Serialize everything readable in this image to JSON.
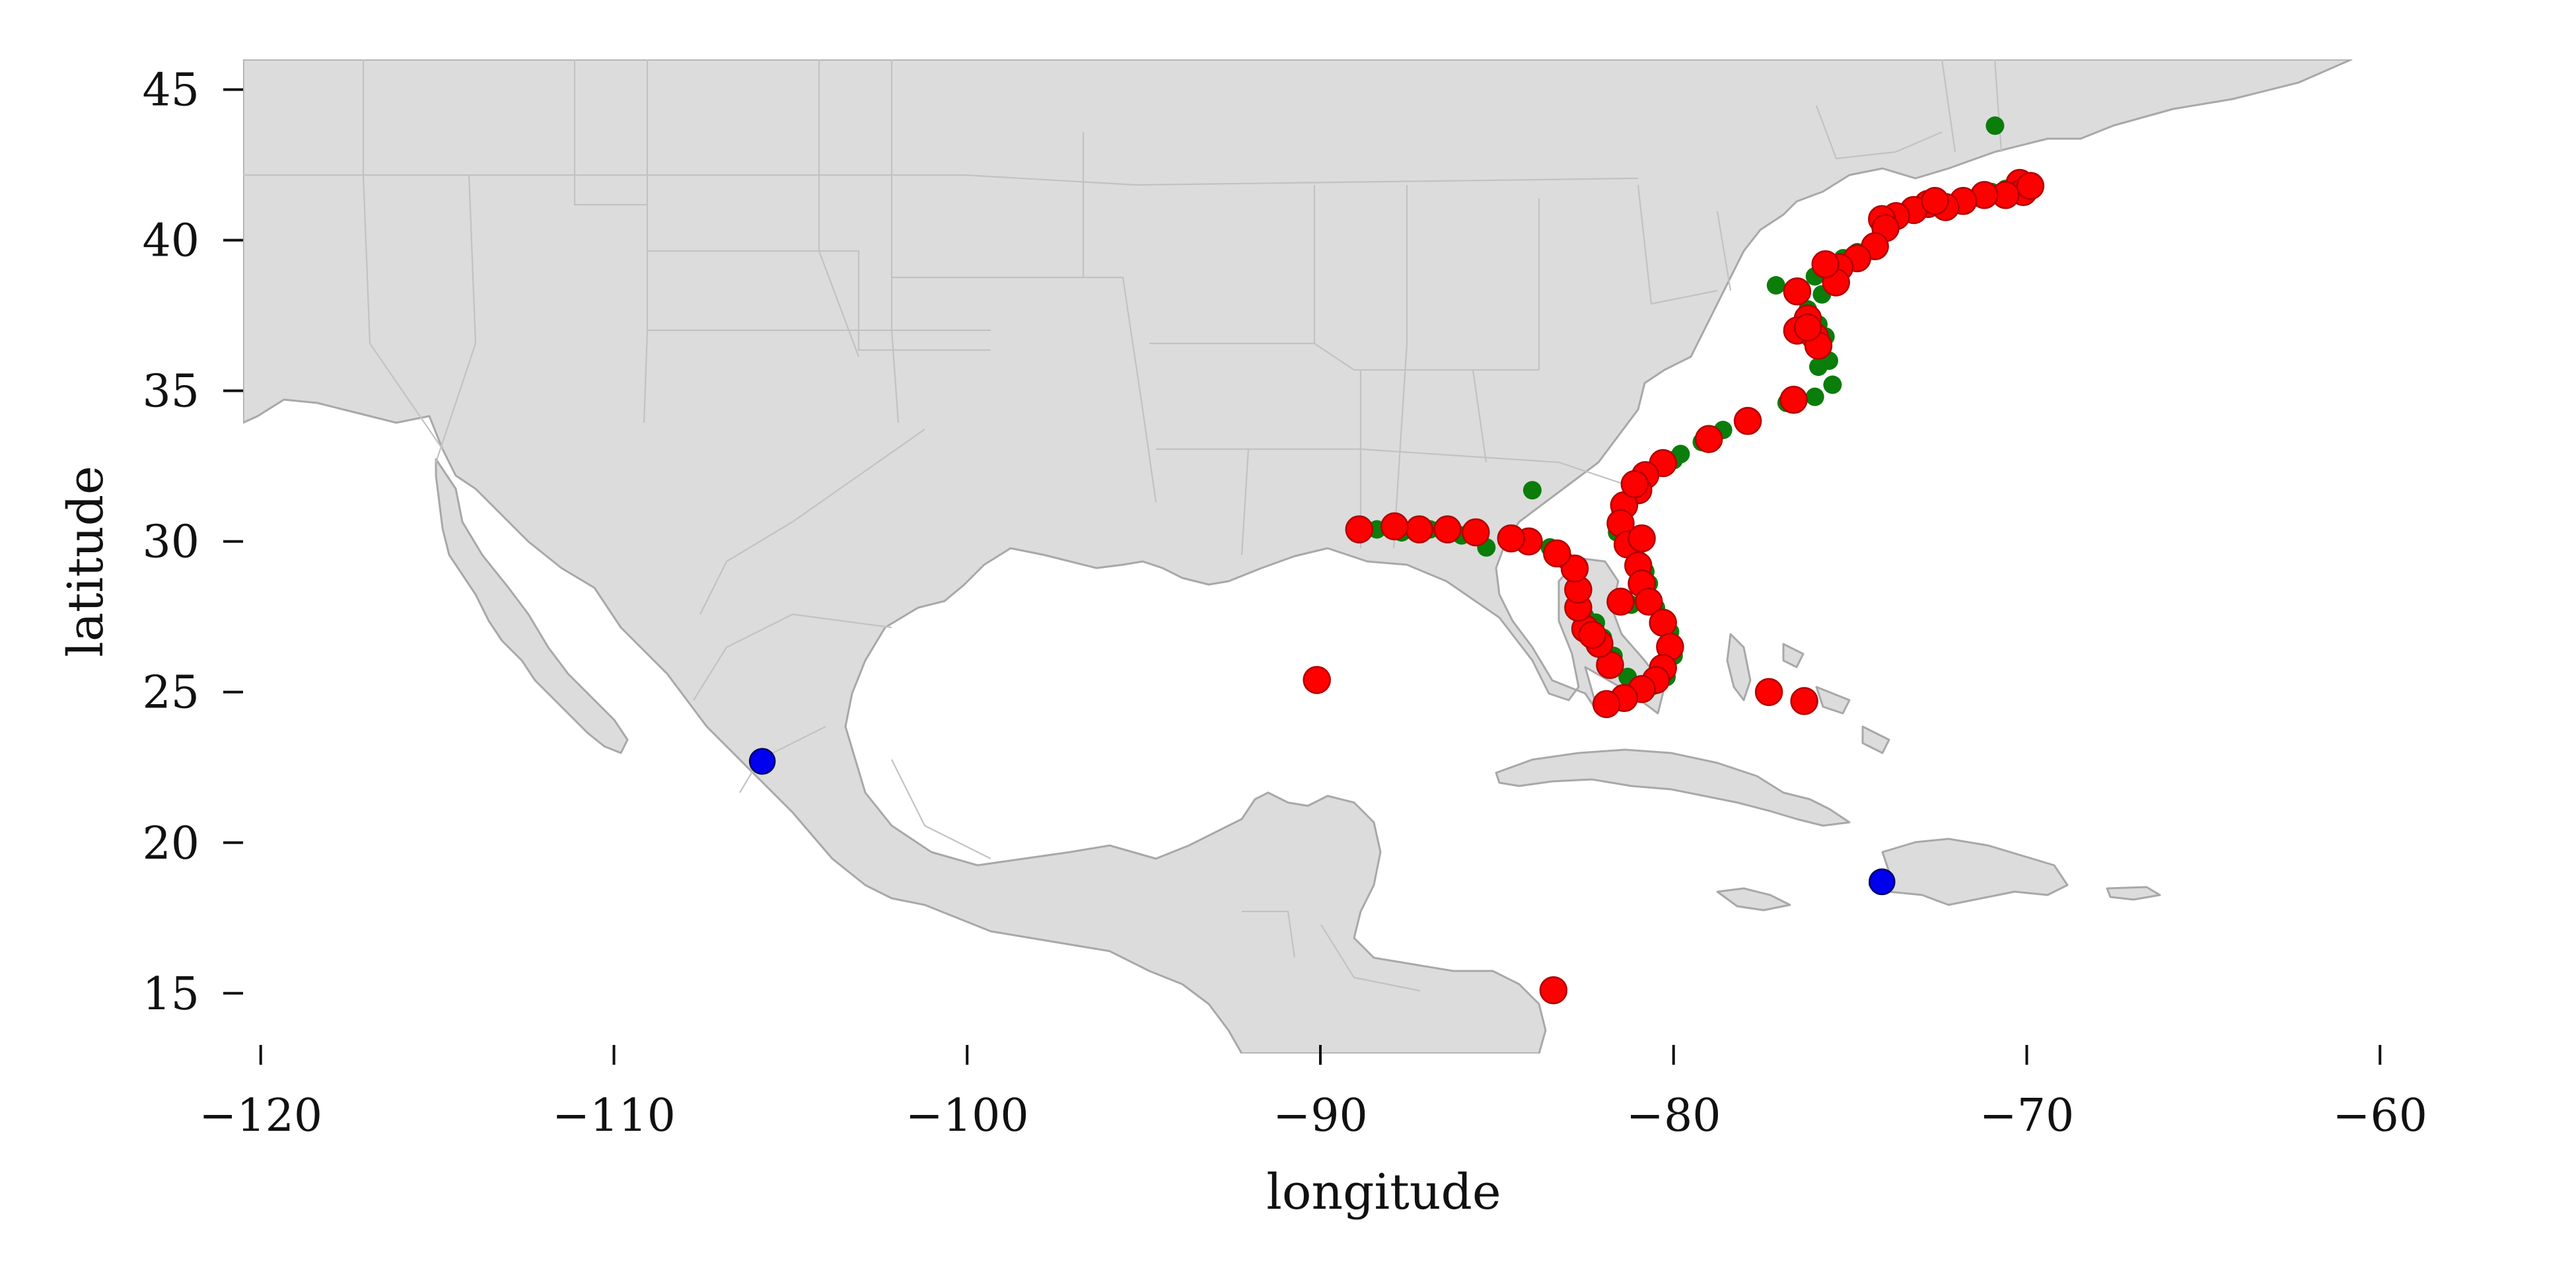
{
  "chart_data": {
    "type": "scatter",
    "xlabel": "longitude",
    "ylabel": "latitude",
    "xlim": [
      -120.5,
      -59.5
    ],
    "ylim": [
      13,
      46
    ],
    "x_ticks": [
      -120,
      -110,
      -100,
      -90,
      -80,
      -70,
      -60
    ],
    "x_tick_labels": [
      "−120",
      "−110",
      "−100",
      "−90",
      "−80",
      "−70",
      "−60"
    ],
    "y_ticks": [
      15,
      20,
      25,
      30,
      35,
      40,
      45
    ],
    "y_tick_labels": [
      "15",
      "20",
      "25",
      "30",
      "35",
      "40",
      "45"
    ],
    "grid": false,
    "colors": {
      "green": "#0a7d0a",
      "red": "#ff0000",
      "blue": "#0000ee",
      "land": "#dcdcdc"
    },
    "series": [
      {
        "color": "green",
        "points": [
          [
            -70.9,
            43.8
          ],
          [
            -84.0,
            31.7
          ],
          [
            -70.2,
            42.0
          ],
          [
            -71.0,
            41.6
          ],
          [
            -72.5,
            41.2
          ],
          [
            -73.8,
            40.8
          ],
          [
            -74.1,
            40.2
          ],
          [
            -74.8,
            39.6
          ],
          [
            -75.5,
            38.8
          ],
          [
            -75.8,
            38.2
          ],
          [
            -76.2,
            37.7
          ],
          [
            -75.9,
            37.2
          ],
          [
            -75.7,
            36.8
          ],
          [
            -75.6,
            36.0
          ],
          [
            -75.5,
            35.2
          ],
          [
            -76.0,
            34.8
          ],
          [
            -76.8,
            34.6
          ],
          [
            -77.8,
            34.0
          ],
          [
            -78.6,
            33.7
          ],
          [
            -79.2,
            33.3
          ],
          [
            -80.0,
            32.7
          ],
          [
            -80.7,
            32.2
          ],
          [
            -81.2,
            31.5
          ],
          [
            -81.4,
            30.7
          ],
          [
            -81.3,
            30.0
          ],
          [
            -81.0,
            29.4
          ],
          [
            -80.7,
            28.6
          ],
          [
            -80.5,
            27.8
          ],
          [
            -80.1,
            27.0
          ],
          [
            -80.0,
            26.2
          ],
          [
            -80.2,
            25.5
          ],
          [
            -80.6,
            25.2
          ],
          [
            -81.3,
            25.5
          ],
          [
            -81.7,
            26.2
          ],
          [
            -82.0,
            26.8
          ],
          [
            -82.5,
            27.5
          ],
          [
            -82.8,
            28.3
          ],
          [
            -82.7,
            29.0
          ],
          [
            -83.5,
            29.8
          ],
          [
            -84.4,
            30.0
          ],
          [
            -85.3,
            29.8
          ],
          [
            -86.0,
            30.2
          ],
          [
            -86.9,
            30.4
          ],
          [
            -87.7,
            30.3
          ],
          [
            -88.4,
            30.4
          ],
          [
            -76.0,
            38.8
          ],
          [
            -75.2,
            39.4
          ],
          [
            -77.1,
            38.5
          ],
          [
            -76.3,
            36.9
          ],
          [
            -75.9,
            35.8
          ],
          [
            -81.2,
            27.9
          ],
          [
            -80.8,
            29.0
          ],
          [
            -82.2,
            27.3
          ],
          [
            -83.1,
            29.4
          ],
          [
            -81.6,
            30.3
          ],
          [
            -79.8,
            32.9
          ],
          [
            -78.0,
            33.9
          ],
          [
            -70.6,
            41.7
          ],
          [
            -73.0,
            41.2
          ],
          [
            -71.7,
            41.4
          ],
          [
            -82.8,
            27.8
          ],
          [
            -81.5,
            31.0
          ]
        ]
      },
      {
        "color": "red",
        "points": [
          [
            -70.2,
            41.9
          ],
          [
            -70.1,
            41.6
          ],
          [
            -70.6,
            41.5
          ],
          [
            -71.2,
            41.5
          ],
          [
            -71.8,
            41.3
          ],
          [
            -72.3,
            41.1
          ],
          [
            -72.8,
            41.2
          ],
          [
            -73.2,
            41.0
          ],
          [
            -73.7,
            40.8
          ],
          [
            -74.1,
            40.7
          ],
          [
            -74.0,
            40.4
          ],
          [
            -74.3,
            39.8
          ],
          [
            -74.8,
            39.4
          ],
          [
            -75.3,
            39.1
          ],
          [
            -75.4,
            38.6
          ],
          [
            -76.5,
            38.3
          ],
          [
            -76.2,
            37.4
          ],
          [
            -76.5,
            37.0
          ],
          [
            -76.0,
            36.8
          ],
          [
            -75.9,
            36.5
          ],
          [
            -76.2,
            37.1
          ],
          [
            -76.6,
            34.7
          ],
          [
            -77.9,
            34.0
          ],
          [
            -79.0,
            33.4
          ],
          [
            -80.3,
            32.6
          ],
          [
            -80.8,
            32.2
          ],
          [
            -81.0,
            31.7
          ],
          [
            -81.4,
            31.2
          ],
          [
            -81.5,
            30.6
          ],
          [
            -81.3,
            29.9
          ],
          [
            -81.0,
            29.2
          ],
          [
            -80.9,
            28.6
          ],
          [
            -80.7,
            28.0
          ],
          [
            -80.3,
            27.3
          ],
          [
            -80.1,
            26.5
          ],
          [
            -80.3,
            25.8
          ],
          [
            -80.5,
            25.4
          ],
          [
            -80.9,
            25.1
          ],
          [
            -81.4,
            24.8
          ],
          [
            -81.9,
            24.6
          ],
          [
            -81.8,
            25.9
          ],
          [
            -82.1,
            26.6
          ],
          [
            -82.5,
            27.1
          ],
          [
            -82.7,
            27.8
          ],
          [
            -82.7,
            28.4
          ],
          [
            -82.8,
            29.1
          ],
          [
            -83.3,
            29.6
          ],
          [
            -84.1,
            30.0
          ],
          [
            -84.6,
            30.1
          ],
          [
            -85.6,
            30.3
          ],
          [
            -86.4,
            30.4
          ],
          [
            -87.2,
            30.4
          ],
          [
            -87.9,
            30.5
          ],
          [
            -88.9,
            30.4
          ],
          [
            -90.1,
            25.4
          ],
          [
            -77.3,
            25.0
          ],
          [
            -76.3,
            24.7
          ],
          [
            -83.4,
            15.1
          ],
          [
            -81.5,
            28.0
          ],
          [
            -80.9,
            30.1
          ],
          [
            -75.7,
            39.2
          ],
          [
            -72.6,
            41.3
          ],
          [
            -69.9,
            41.8
          ],
          [
            -81.1,
            31.9
          ],
          [
            -82.3,
            26.9
          ]
        ]
      },
      {
        "color": "blue",
        "points": [
          [
            -105.8,
            22.7
          ],
          [
            -74.1,
            18.7
          ]
        ]
      }
    ]
  }
}
